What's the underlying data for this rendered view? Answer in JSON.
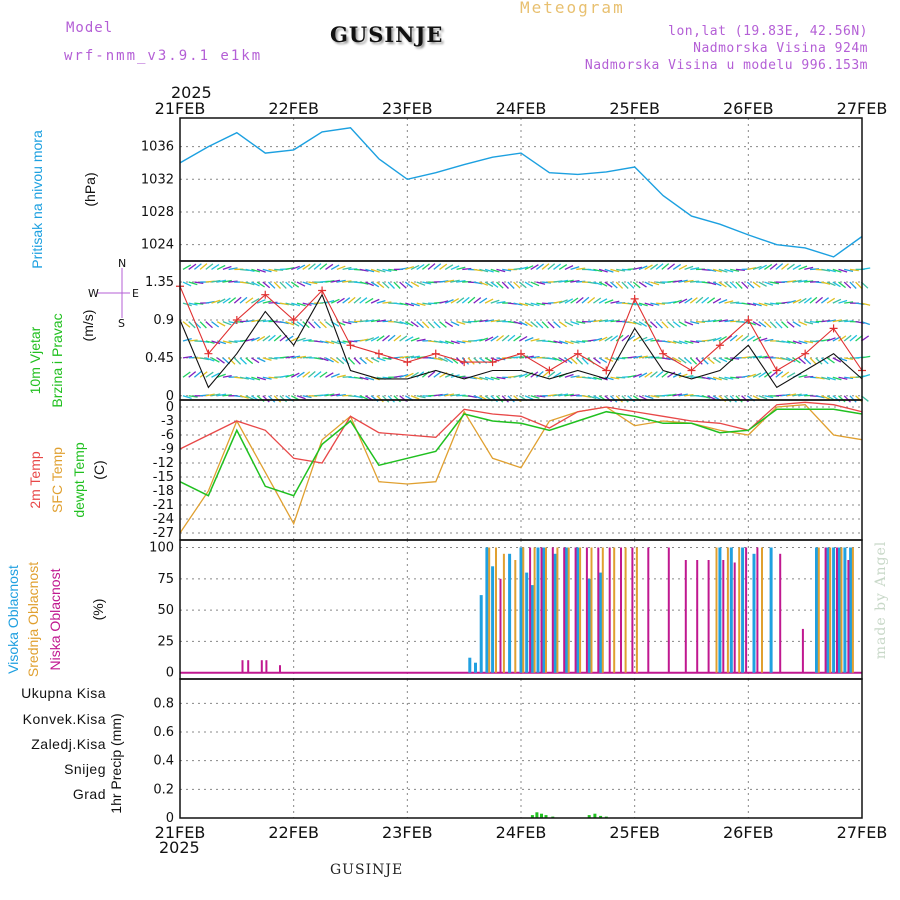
{
  "header": {
    "model_label": "Model",
    "model_name": "wrf-nmm_v3.9.1 e1km",
    "station": "GUSINJE",
    "title": "Meteogram",
    "lonlat": "lon,lat (19.83E, 42.56N)",
    "altitude": "Nadmorska Visina 924m",
    "model_altitude": "Nadmorska Visina u modelu 996.153m",
    "year_top": "2025",
    "year_bottom": "2025",
    "footer_station": "GUSINJE",
    "credit": "made by Angel"
  },
  "colors": {
    "pressure": "#1ca0e0",
    "wind_label": "#22c020",
    "wind_speed": "#111111",
    "wind_gust": "#e03030",
    "temp2m": "#e84848",
    "sfc_temp": "#e0a030",
    "dewpt": "#20c020",
    "cloud_high": "#20a0e0",
    "cloud_mid": "#e0a030",
    "cloud_low": "#c01890",
    "precip_total": "#20c020",
    "precip_conv": "#e84848",
    "precip_frozen": "#f08030",
    "precip_snow": "#4040e0",
    "precip_hail": "#20c0c0",
    "wind_compass": "#b45fd6"
  },
  "chart_data": [
    {
      "type": "line",
      "panel": "pressure",
      "ylabel": "(hPa)",
      "series_label": "Pritisak na nivou mora",
      "x_ticks": [
        "21FEB",
        "22FEB",
        "23FEB",
        "24FEB",
        "25FEB",
        "26FEB",
        "27FEB"
      ],
      "x_days": [
        0,
        0.25,
        0.5,
        0.75,
        1.0,
        1.25,
        1.5,
        1.75,
        2.0,
        2.25,
        2.5,
        2.75,
        3.0,
        3.25,
        3.5,
        3.75,
        4.0,
        4.25,
        4.5,
        4.75,
        5.0,
        5.25,
        5.5,
        5.75,
        6.0
      ],
      "y_ticks": [
        1024,
        1028,
        1032,
        1036
      ],
      "ylim": [
        1022,
        1039.5
      ],
      "values": [
        1034.0,
        1036.0,
        1037.7,
        1035.2,
        1035.6,
        1037.8,
        1038.3,
        1034.5,
        1032.0,
        1032.8,
        1033.8,
        1034.7,
        1035.2,
        1032.8,
        1032.6,
        1032.9,
        1033.5,
        1030.0,
        1027.5,
        1026.5,
        1025.2,
        1024.0,
        1023.6,
        1022.5,
        1025.0
      ]
    },
    {
      "type": "line",
      "panel": "wind",
      "ylabel": "(m/s)",
      "series_label": "10m Vjetar Brzina i Pravac",
      "compass_labels": [
        "W",
        "E",
        "N",
        "S"
      ],
      "y_ticks": [
        0,
        0.45,
        0.9,
        1.35
      ],
      "ylim": [
        -0.05,
        1.6
      ],
      "x_days": [
        0,
        0.25,
        0.5,
        0.75,
        1.0,
        1.25,
        1.5,
        1.75,
        2.0,
        2.25,
        2.5,
        2.75,
        3.0,
        3.25,
        3.5,
        3.75,
        4.0,
        4.25,
        4.5,
        4.75,
        5.0,
        5.25,
        5.5,
        5.75,
        6.0
      ],
      "speed": [
        0.9,
        0.1,
        0.5,
        1.0,
        0.6,
        1.2,
        0.3,
        0.2,
        0.2,
        0.3,
        0.2,
        0.3,
        0.3,
        0.2,
        0.3,
        0.2,
        0.8,
        0.3,
        0.2,
        0.3,
        0.6,
        0.1,
        0.3,
        0.5,
        0.2
      ],
      "gust": [
        1.3,
        0.5,
        0.9,
        1.2,
        0.9,
        1.25,
        0.6,
        0.5,
        0.4,
        0.5,
        0.4,
        0.4,
        0.5,
        0.3,
        0.5,
        0.3,
        1.15,
        0.5,
        0.3,
        0.6,
        0.9,
        0.3,
        0.5,
        0.8,
        0.3
      ]
    },
    {
      "type": "line",
      "panel": "temperature",
      "ylabel": "(C)",
      "series_labels": [
        "2m Temp",
        "SFC Temp",
        "dewpt Temp"
      ],
      "y_ticks": [
        0,
        -3,
        -6,
        -9,
        -12,
        -15,
        -18,
        -21,
        -24,
        -27
      ],
      "ylim": [
        -28.5,
        1.5
      ],
      "x_days": [
        0,
        0.25,
        0.5,
        0.75,
        1.0,
        1.25,
        1.5,
        1.75,
        2.0,
        2.25,
        2.5,
        2.75,
        3.0,
        3.25,
        3.5,
        3.75,
        4.0,
        4.25,
        4.5,
        4.75,
        5.0,
        5.25,
        5.5,
        5.75,
        6.0
      ],
      "t2m": [
        -9.0,
        -6.0,
        -3.0,
        -5.0,
        -11.0,
        -12.0,
        -2.0,
        -5.5,
        -6.0,
        -6.5,
        -0.5,
        -1.5,
        -2.0,
        -4.5,
        -1.0,
        0.0,
        -1.0,
        -2.0,
        -3.0,
        -3.5,
        -5.0,
        0.5,
        1.0,
        0.5,
        -1.0
      ],
      "sfc": [
        -27.0,
        -18.0,
        -3.0,
        -14.0,
        -25.0,
        -7.0,
        -2.0,
        -16.0,
        -16.5,
        -16.0,
        -1.0,
        -11.0,
        -13.0,
        -3.0,
        -1.0,
        0.0,
        -4.0,
        -3.0,
        -3.5,
        -5.0,
        -6.0,
        0.0,
        0.5,
        -6.0,
        -7.0
      ],
      "dewpt": [
        -16.0,
        -19.0,
        -5.0,
        -17.0,
        -19.0,
        -8.0,
        -3.0,
        -12.5,
        -11.0,
        -9.5,
        -1.5,
        -3.0,
        -3.5,
        -5.0,
        -3.0,
        -1.0,
        -2.0,
        -3.5,
        -3.5,
        -5.5,
        -5.0,
        -0.5,
        -0.5,
        -0.5,
        -1.5
      ]
    },
    {
      "type": "bar",
      "panel": "cloud",
      "ylabel": "(%)",
      "series_labels": [
        "Visoka Oblacnost",
        "Srednja Oblacnost",
        "Niska Oblacnost"
      ],
      "y_ticks": [
        0,
        25,
        50,
        75,
        100
      ],
      "ylim": [
        -5,
        106
      ],
      "high_day": [
        2.55,
        2.6,
        2.65,
        2.7,
        2.75,
        2.9,
        3.0,
        3.05,
        3.1,
        3.15,
        3.2,
        3.3,
        3.4,
        3.5,
        3.6,
        3.7,
        4.75,
        4.85,
        4.95,
        5.05,
        5.2,
        5.6,
        5.7,
        5.75,
        5.8,
        5.85,
        5.9
      ],
      "high_val": [
        12,
        8,
        62,
        100,
        85,
        95,
        100,
        80,
        70,
        100,
        100,
        95,
        100,
        100,
        75,
        80,
        100,
        100,
        100,
        95,
        100,
        100,
        100,
        100,
        100,
        100,
        100
      ],
      "mid_day": [
        2.72,
        2.78,
        2.85,
        2.95,
        3.02,
        3.12,
        3.22,
        3.32,
        3.42,
        3.52,
        3.62,
        3.72,
        3.82,
        3.92,
        4.02,
        4.72,
        4.82,
        4.92,
        5.12,
        5.62,
        5.72,
        5.82,
        5.92
      ],
      "mid_val": [
        100,
        100,
        95,
        90,
        100,
        100,
        100,
        100,
        100,
        100,
        100,
        100,
        100,
        100,
        100,
        100,
        100,
        100,
        100,
        100,
        100,
        100,
        100
      ],
      "low_day": [
        0.55,
        0.6,
        0.72,
        0.76,
        0.88,
        2.82,
        3.08,
        3.18,
        3.28,
        3.38,
        3.48,
        3.58,
        3.68,
        3.78,
        3.88,
        3.98,
        4.12,
        4.3,
        4.45,
        4.55,
        4.65,
        4.78,
        4.88,
        4.98,
        5.08,
        5.28,
        5.48,
        5.68,
        5.78,
        5.88
      ],
      "low_val": [
        10,
        10,
        10,
        10,
        6,
        75,
        100,
        100,
        100,
        100,
        100,
        100,
        100,
        100,
        100,
        100,
        100,
        100,
        90,
        90,
        90,
        90,
        88,
        100,
        100,
        95,
        35,
        100,
        100,
        90
      ]
    },
    {
      "type": "bar",
      "panel": "precip",
      "ylabel": "1hr Precip (mm)",
      "series_labels": [
        "Ukupna Kisa",
        "Konvek.Kisa",
        "Zaledj.Kisa",
        "Snijeg",
        "Grad"
      ],
      "y_ticks": [
        0,
        0.2,
        0.4,
        0.6,
        0.8
      ],
      "ylim": [
        0,
        0.97
      ],
      "bar_day": [
        3.1,
        3.14,
        3.18,
        3.22,
        3.28,
        3.6,
        3.65,
        3.7,
        3.75
      ],
      "bar_val": [
        0.02,
        0.04,
        0.03,
        0.02,
        0.01,
        0.02,
        0.03,
        0.015,
        0.01
      ]
    }
  ]
}
